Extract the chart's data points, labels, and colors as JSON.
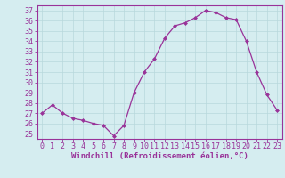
{
  "x": [
    0,
    1,
    2,
    3,
    4,
    5,
    6,
    7,
    8,
    9,
    10,
    11,
    12,
    13,
    14,
    15,
    16,
    17,
    18,
    19,
    20,
    21,
    22,
    23
  ],
  "y": [
    27.0,
    27.8,
    27.0,
    26.5,
    26.3,
    26.0,
    25.8,
    24.8,
    25.8,
    29.0,
    31.0,
    32.3,
    34.3,
    35.5,
    35.8,
    36.3,
    37.0,
    36.8,
    36.3,
    36.1,
    34.0,
    31.0,
    28.8,
    27.3
  ],
  "line_color": "#993399",
  "marker": "D",
  "marker_size": 2.0,
  "bg_color": "#d5edf0",
  "grid_color": "#b8d8dc",
  "xlabel": "Windchill (Refroidissement éolien,°C)",
  "ylabel_ticks": [
    25,
    26,
    27,
    28,
    29,
    30,
    31,
    32,
    33,
    34,
    35,
    36,
    37
  ],
  "ylim": [
    24.5,
    37.5
  ],
  "xlim": [
    -0.5,
    23.5
  ],
  "tick_color": "#993399",
  "label_color": "#993399",
  "xlabel_fontsize": 6.5,
  "tick_fontsize": 6.0,
  "spine_color": "#993399",
  "linewidth": 0.9
}
